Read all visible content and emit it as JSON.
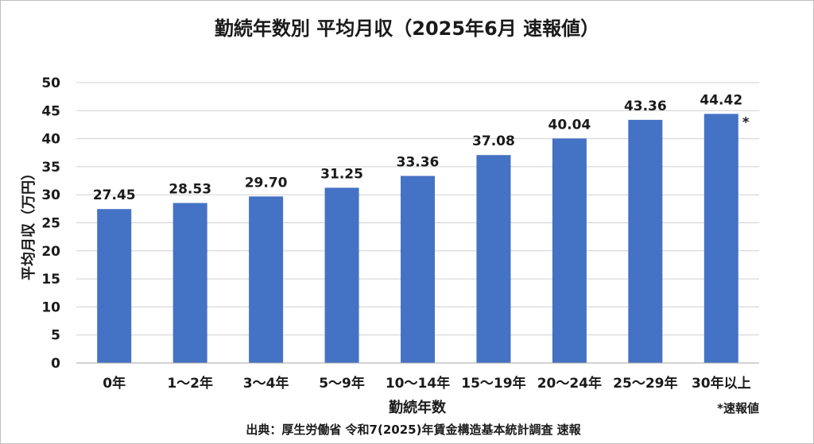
{
  "chart_data": {
    "type": "bar",
    "title": "勤続年数別 平均月収（2025年6月 速報値）",
    "xlabel": "勤続年数",
    "ylabel": "平均月収（万円）",
    "ylim": [
      0,
      50
    ],
    "yticks": [
      "0",
      "5",
      "10",
      "15",
      "20",
      "25",
      "30",
      "35",
      "40",
      "45",
      "50"
    ],
    "grid": true,
    "categories": [
      "0年",
      "1～2年",
      "3～4年",
      "5～9年",
      "10～14年",
      "15～19年",
      "20～24年",
      "25～29年",
      "30年以上"
    ],
    "values": [
      27.45,
      28.53,
      29.7,
      31.25,
      33.36,
      37.08,
      40.04,
      43.36,
      44.42
    ],
    "value_labels": [
      "27.45",
      "28.53",
      "29.70",
      "31.25",
      "33.36",
      "37.08",
      "40.04",
      "43.36",
      "44.42"
    ],
    "bar_color": "#4472c4",
    "annotations": [
      {
        "target": "30年以上",
        "text": "*"
      }
    ],
    "footnote": "*速報値",
    "source": "出典：厚生労働省 令和7(2025)年賃金構造基本統計調査 速報"
  }
}
